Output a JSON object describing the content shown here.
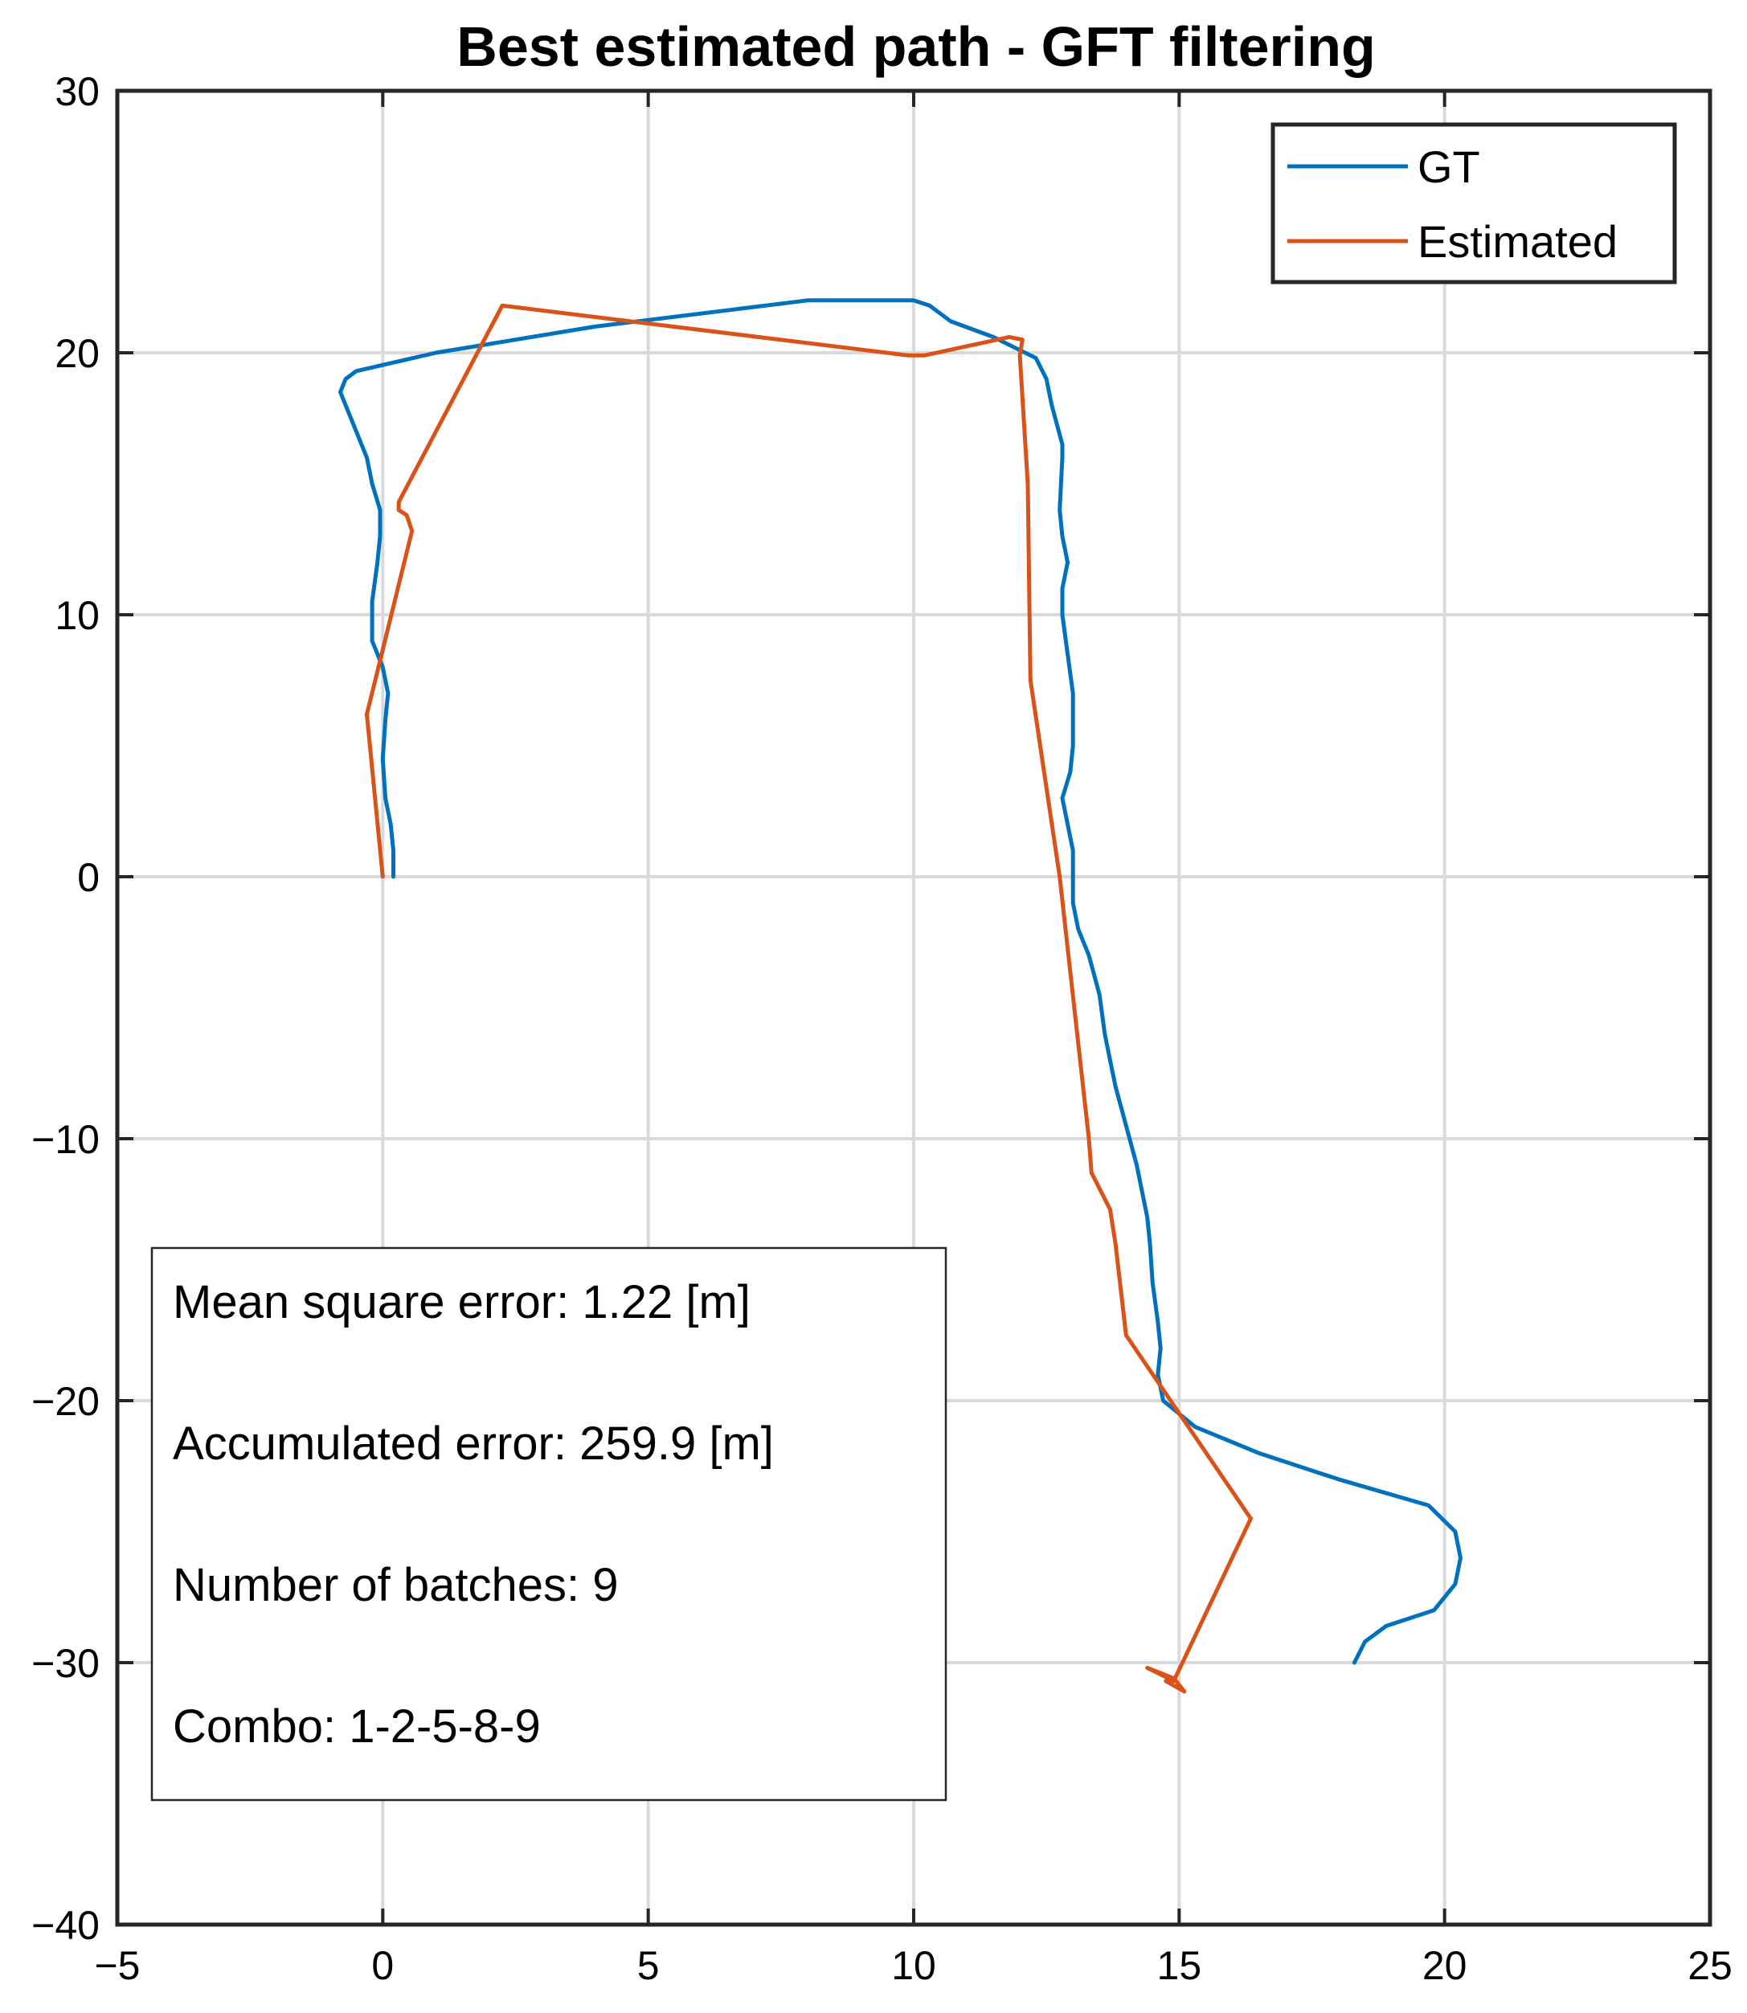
{
  "chart_data": {
    "type": "line",
    "title": "Best estimated path - GFT filtering",
    "xlabel": "",
    "ylabel": "",
    "xlim": [
      -5,
      25
    ],
    "ylim": [
      -40,
      30
    ],
    "xticks": [
      -5,
      0,
      5,
      10,
      15,
      20,
      25
    ],
    "yticks": [
      -40,
      -30,
      -20,
      -10,
      0,
      10,
      20,
      30
    ],
    "xtick_labels": [
      "−5",
      "0",
      "5",
      "10",
      "15",
      "20",
      "25"
    ],
    "ytick_labels": [
      "−40",
      "−30",
      "−20",
      "−10",
      "0",
      "10",
      "20",
      "30"
    ],
    "grid": true,
    "legend_position": "top-right",
    "series": [
      {
        "name": "GT",
        "color": "#0072BD",
        "x": [
          0.2,
          0.2,
          0.15,
          0.05,
          0.0,
          0.05,
          0.1,
          0.0,
          -0.2,
          -0.2,
          -0.1,
          -0.05,
          -0.05,
          -0.2,
          -0.3,
          -0.5,
          -0.7,
          -0.8,
          -0.7,
          -0.5,
          1.0,
          4.0,
          8.0,
          10.0,
          10.3,
          10.7,
          11.5,
          12.3,
          12.5,
          12.6,
          12.8,
          12.8,
          12.75,
          12.8,
          12.9,
          12.8,
          12.8,
          12.9,
          13.0,
          13.0,
          12.95,
          12.8,
          13.0,
          13.0,
          13.1,
          13.3,
          13.5,
          13.6,
          13.7,
          13.8,
          14.0,
          14.2,
          14.3,
          14.4,
          14.45,
          14.5,
          14.6,
          14.65,
          14.6,
          14.7,
          15.3,
          16.5,
          18.0,
          19.7,
          20.2,
          20.3,
          20.2,
          19.8,
          18.9,
          18.5,
          18.3
        ],
        "y": [
          0,
          1.0,
          2.0,
          3.0,
          4.5,
          6.0,
          7.0,
          8.0,
          9.0,
          10.5,
          12.0,
          13.0,
          14.0,
          15.0,
          16.0,
          17.0,
          18.0,
          18.5,
          19.0,
          19.3,
          20.0,
          21.0,
          22.0,
          22.0,
          21.8,
          21.2,
          20.6,
          19.8,
          19.0,
          18.0,
          16.5,
          16.0,
          14.0,
          13.0,
          12.0,
          11.0,
          10.0,
          8.5,
          7.0,
          5.0,
          4.0,
          3.0,
          1.0,
          -1.0,
          -2.0,
          -3.0,
          -4.5,
          -6.0,
          -7.0,
          -8.0,
          -9.5,
          -11.0,
          -12.0,
          -13.0,
          -14.0,
          -15.5,
          -17.0,
          -18.0,
          -19.0,
          -20.0,
          -21.0,
          -22.0,
          -23.0,
          -24.0,
          -25.0,
          -26.0,
          -27.0,
          -28.0,
          -28.6,
          -29.2,
          -30.0
        ]
      },
      {
        "name": "Estimated",
        "color": "#D95319",
        "x": [
          0.0,
          -0.3,
          0.55,
          0.45,
          0.3,
          0.3,
          2.25,
          9.9,
          10.2,
          11.8,
          12.05,
          12.0,
          12.15,
          12.2,
          12.75,
          13.3,
          13.35,
          13.7,
          13.8,
          14.0,
          16.35,
          14.9,
          14.4,
          14.9,
          15.1,
          14.75
        ],
        "y": [
          0.0,
          6.2,
          13.2,
          13.8,
          14.0,
          14.3,
          21.8,
          19.9,
          19.9,
          20.6,
          20.5,
          19.9,
          15.0,
          7.5,
          0.0,
          -10.0,
          -11.3,
          -12.7,
          -14.0,
          -17.5,
          -24.5,
          -30.7,
          -30.2,
          -30.6,
          -31.1,
          -30.7
        ]
      }
    ],
    "annotation": {
      "lines": [
        "Mean square error: 1.22 [m]",
        "Accumulated error: 259.9 [m]",
        "Number of batches: 9",
        "Combo: 1-2-5-8-9"
      ]
    }
  }
}
